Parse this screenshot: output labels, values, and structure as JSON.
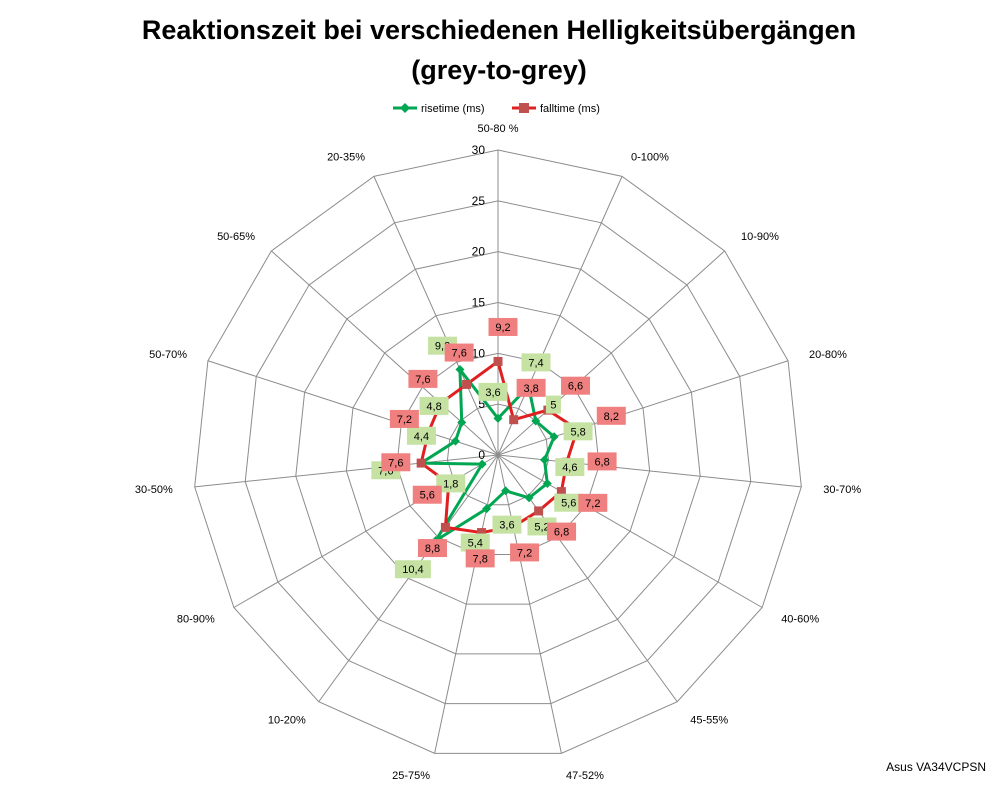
{
  "chart_data": {
    "type": "radar",
    "title_line1": "Reaktionszeit bei verschiedenen Helligkeitsübergängen",
    "title_line2": "(grey-to-grey)",
    "categories": [
      "50-80 %",
      "0-100%",
      "10-90%",
      "20-80%",
      "30-70%",
      "40-60%",
      "45-55%",
      "47-52%",
      "25-75%",
      "10-20%",
      "80-90%",
      "30-50%",
      "50-70%",
      "50-65%",
      "20-35%"
    ],
    "radial_ticks": [
      0,
      5,
      10,
      15,
      20,
      25,
      30
    ],
    "rlim": [
      0,
      30
    ],
    "legend_position": "top",
    "series": [
      {
        "name": "risetime (ms)",
        "color": "#00a651",
        "label_bg": "#c6e2a3",
        "values": [
          3.6,
          7.4,
          5,
          5.8,
          4.6,
          5.6,
          5.2,
          3.6,
          5.4,
          10.4,
          1.8,
          7.6,
          4.4,
          4.8,
          9.2
        ]
      },
      {
        "name": "falltime (ms)",
        "color": "#e02020",
        "label_bg": "#f08080",
        "values": [
          9.2,
          3.8,
          6.6,
          8.2,
          6.8,
          7.2,
          6.8,
          7.2,
          7.8,
          8.8,
          5.6,
          7.6,
          7.2,
          7.6,
          7.6
        ]
      }
    ],
    "value_labels": [
      [
        "3,6",
        "7,4",
        "5",
        "5,8",
        "4,6",
        "5,6",
        "5,2",
        "3,6",
        "5,4",
        "10,4",
        "1,8",
        "7,6",
        "4,4",
        "4,8",
        "9,2"
      ],
      [
        "9,2",
        "3,8",
        "6,6",
        "8,2",
        "6,8",
        "7,2",
        "6,8",
        "7,2",
        "7,8",
        "8,8",
        "5,6",
        "7,6",
        "7,2",
        "7,6",
        "7,6"
      ]
    ]
  },
  "footer": "Asus VA34VCPSN"
}
